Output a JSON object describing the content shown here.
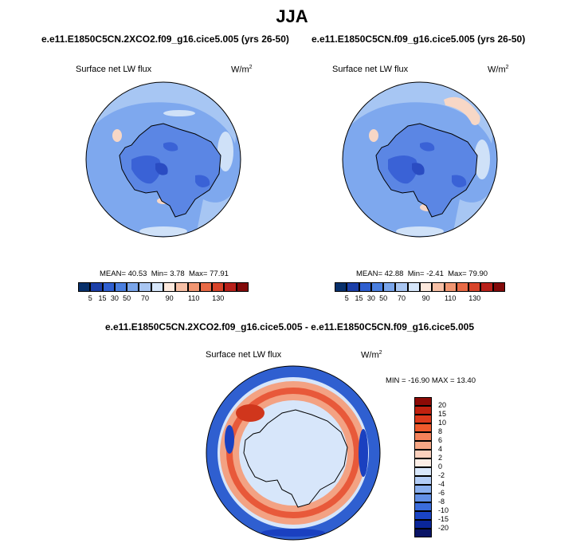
{
  "title": "JJA",
  "panels": [
    {
      "case": "e.e11.E1850C5CN.2XCO2.f09_g16.cice5.005 (yrs 26-50)",
      "variable": "Surface net LW flux",
      "units_base": "W/m",
      "units_exp": "2",
      "stats": {
        "mean_label": "MEAN=",
        "mean": "40.53",
        "min_label": "Min=",
        "min": "3.78",
        "max_label": "Max=",
        "max": "77.91"
      }
    },
    {
      "case": "e.e11.E1850C5CN.f09_g16.cice5.005 (yrs 26-50)",
      "variable": "Surface net LW flux",
      "units_base": "W/m",
      "units_exp": "2",
      "stats": {
        "mean_label": "MEAN=",
        "mean": "42.88",
        "min_label": "Min=",
        "min": "-2.41",
        "max_label": "Max=",
        "max": "79.90"
      }
    }
  ],
  "diff_panel": {
    "title": "e.e11.E1850C5CN.2XCO2.f09_g16.cice5.005 - e.e11.E1850C5CN.f09_g16.cice5.005",
    "variable": "Surface net LW flux",
    "units_base": "W/m",
    "units_exp": "2",
    "minmax": "MIN = -16.90 MAX =  13.40"
  },
  "colorbar_abs": {
    "colors": [
      "#08306b",
      "#1c3fa8",
      "#2f5fd0",
      "#4a7fe0",
      "#7aa5ea",
      "#a9c6f2",
      "#d6e6fa",
      "#fde9dd",
      "#f7c0a6",
      "#f19672",
      "#e86a46",
      "#d8442a",
      "#b8201a",
      "#820a0a"
    ],
    "labels": [
      "5",
      "15",
      "30",
      "50",
      "70",
      "90",
      "110",
      "130"
    ]
  },
  "colorbar_diff": {
    "colors": [
      "#8c0a06",
      "#c0210f",
      "#dc3a1c",
      "#ef5a2c",
      "#f4825a",
      "#f7a785",
      "#fbd0bd",
      "#fdeee6",
      "#d8e7fb",
      "#b3cdf6",
      "#8ab0ef",
      "#6290e6",
      "#3a6cdc",
      "#1a44c4",
      "#0a2699",
      "#0a1466"
    ],
    "labels": [
      "20",
      "15",
      "10",
      "8",
      "6",
      "4",
      "2",
      "0",
      "-2",
      "-4",
      "-6",
      "-8",
      "-10",
      "-15",
      "-20"
    ]
  },
  "map_colors": {
    "ocean_base": "#7ea8ee",
    "ocean_light": "#a7c6f3",
    "ocean_pale": "#cfe1f8",
    "land_base": "#5b86e4",
    "land_dark": "#3a62d6",
    "land_deep": "#2a4cc2",
    "warm_pale": "#f7d7c6",
    "diff_bg": "#d7e6fa",
    "diff_blue": "#2f5fd0",
    "diff_blue_dark": "#1a40c0",
    "diff_red": "#e8593a",
    "diff_red_dark": "#d0361c",
    "diff_salmon": "#f3a283"
  }
}
